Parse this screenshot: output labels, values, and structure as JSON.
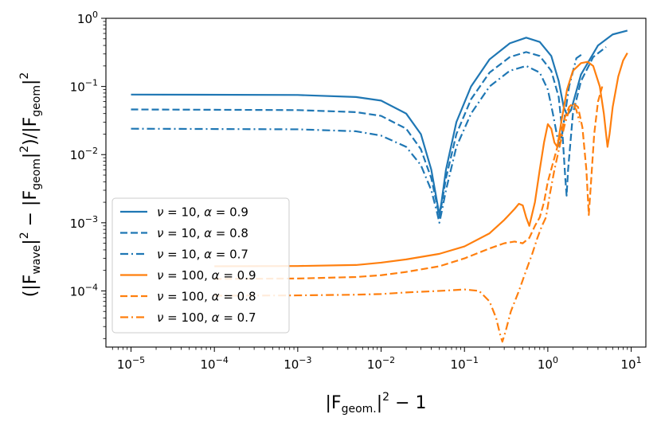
{
  "chart_data": {
    "type": "line",
    "title": "",
    "xscale": "log",
    "yscale": "log",
    "xlim": [
      5e-06,
      15
    ],
    "ylim": [
      1.5e-05,
      1.0
    ],
    "xlabel": "|F_geom.|^2 - 1",
    "ylabel": "(|F_wave|^2 - |F_geom|^2)/|F_geom|^2",
    "xlabel_parts": {
      "pre": "|F",
      "sub": "geom.",
      "post": "|",
      "sup": "2",
      "tail": " − 1"
    },
    "ylabel_parts": {
      "a": "(|F",
      "sub1": "wave",
      "b": "|",
      "sup1": "2",
      "c": " − |F",
      "sub2": "geom",
      "d": "|",
      "sup2": "2",
      "e": ")/|F",
      "sub3": "geom",
      "f": "|",
      "sup3": "2"
    },
    "x_ticks": [
      {
        "value": 1e-05,
        "base": "10",
        "exp": "−5"
      },
      {
        "value": 0.0001,
        "base": "10",
        "exp": "−4"
      },
      {
        "value": 0.001,
        "base": "10",
        "exp": "−3"
      },
      {
        "value": 0.01,
        "base": "10",
        "exp": "−2"
      },
      {
        "value": 0.1,
        "base": "10",
        "exp": "−1"
      },
      {
        "value": 1,
        "base": "10",
        "exp": "0"
      },
      {
        "value": 10,
        "base": "10",
        "exp": "1"
      }
    ],
    "y_ticks": [
      {
        "value": 0.0001,
        "base": "10",
        "exp": "−4"
      },
      {
        "value": 0.001,
        "base": "10",
        "exp": "−3"
      },
      {
        "value": 0.01,
        "base": "10",
        "exp": "−2"
      },
      {
        "value": 0.1,
        "base": "10",
        "exp": "−1"
      },
      {
        "value": 1,
        "base": "10",
        "exp": "0"
      }
    ],
    "legend_position": "lower-left",
    "series": [
      {
        "name": "ν = 10, α = 0.9",
        "nu": "10",
        "alpha": "0.9",
        "color": "#1f77b4",
        "dash": "solid",
        "points": [
          [
            1e-05,
            0.076
          ],
          [
            0.001,
            0.075
          ],
          [
            0.005,
            0.07
          ],
          [
            0.01,
            0.062
          ],
          [
            0.02,
            0.04
          ],
          [
            0.03,
            0.02
          ],
          [
            0.04,
            0.006
          ],
          [
            0.047,
            0.002
          ],
          [
            0.05,
            0.0013
          ],
          [
            0.053,
            0.002
          ],
          [
            0.06,
            0.006
          ],
          [
            0.08,
            0.03
          ],
          [
            0.12,
            0.1
          ],
          [
            0.2,
            0.25
          ],
          [
            0.35,
            0.43
          ],
          [
            0.55,
            0.52
          ],
          [
            0.8,
            0.45
          ],
          [
            1.1,
            0.28
          ],
          [
            1.35,
            0.12
          ],
          [
            1.55,
            0.05
          ],
          [
            1.7,
            0.038
          ],
          [
            1.9,
            0.045
          ],
          [
            2.5,
            0.15
          ],
          [
            4,
            0.4
          ],
          [
            6,
            0.58
          ],
          [
            9,
            0.66
          ]
        ]
      },
      {
        "name": "ν = 10, α = 0.8",
        "nu": "10",
        "alpha": "0.8",
        "color": "#1f77b4",
        "dash": "dashed",
        "points": [
          [
            1e-05,
            0.046
          ],
          [
            0.001,
            0.045
          ],
          [
            0.005,
            0.042
          ],
          [
            0.01,
            0.037
          ],
          [
            0.02,
            0.024
          ],
          [
            0.03,
            0.012
          ],
          [
            0.04,
            0.0045
          ],
          [
            0.047,
            0.0018
          ],
          [
            0.05,
            0.0012
          ],
          [
            0.053,
            0.0018
          ],
          [
            0.06,
            0.0045
          ],
          [
            0.08,
            0.02
          ],
          [
            0.12,
            0.065
          ],
          [
            0.2,
            0.16
          ],
          [
            0.35,
            0.27
          ],
          [
            0.55,
            0.32
          ],
          [
            0.8,
            0.28
          ],
          [
            1.1,
            0.17
          ],
          [
            1.35,
            0.07
          ],
          [
            1.5,
            0.02
          ],
          [
            1.62,
            0.0045
          ],
          [
            1.68,
            0.0025
          ],
          [
            1.75,
            0.006
          ],
          [
            2.0,
            0.04
          ],
          [
            2.5,
            0.12
          ],
          [
            3.5,
            0.27
          ],
          [
            5,
            0.38
          ]
        ]
      },
      {
        "name": "ν = 10, α = 0.7",
        "nu": "10",
        "alpha": "0.7",
        "color": "#1f77b4",
        "dash": "dashdot",
        "points": [
          [
            1e-05,
            0.024
          ],
          [
            0.001,
            0.0235
          ],
          [
            0.005,
            0.022
          ],
          [
            0.01,
            0.019
          ],
          [
            0.02,
            0.013
          ],
          [
            0.03,
            0.007
          ],
          [
            0.04,
            0.003
          ],
          [
            0.047,
            0.0014
          ],
          [
            0.05,
            0.001
          ],
          [
            0.053,
            0.0014
          ],
          [
            0.06,
            0.003
          ],
          [
            0.08,
            0.013
          ],
          [
            0.12,
            0.04
          ],
          [
            0.2,
            0.1
          ],
          [
            0.35,
            0.17
          ],
          [
            0.55,
            0.2
          ],
          [
            0.8,
            0.16
          ],
          [
            1.0,
            0.09
          ],
          [
            1.15,
            0.04
          ],
          [
            1.28,
            0.02
          ],
          [
            1.38,
            0.013
          ],
          [
            1.5,
            0.022
          ],
          [
            1.8,
            0.1
          ],
          [
            2.2,
            0.26
          ],
          [
            2.6,
            0.3
          ]
        ]
      },
      {
        "name": "ν = 100, α = 0.9",
        "nu": "100",
        "alpha": "0.9",
        "color": "#ff7f0e",
        "dash": "solid",
        "points": [
          [
            0.0001,
            0.00023
          ],
          [
            0.001,
            0.000232
          ],
          [
            0.005,
            0.00024
          ],
          [
            0.01,
            0.00026
          ],
          [
            0.02,
            0.00029
          ],
          [
            0.05,
            0.00035
          ],
          [
            0.1,
            0.00045
          ],
          [
            0.2,
            0.0007
          ],
          [
            0.3,
            0.0011
          ],
          [
            0.4,
            0.0016
          ],
          [
            0.45,
            0.0019
          ],
          [
            0.5,
            0.0018
          ],
          [
            0.55,
            0.0012
          ],
          [
            0.6,
            0.0009
          ],
          [
            0.7,
            0.002
          ],
          [
            0.8,
            0.006
          ],
          [
            0.9,
            0.015
          ],
          [
            1.0,
            0.028
          ],
          [
            1.1,
            0.024
          ],
          [
            1.2,
            0.015
          ],
          [
            1.3,
            0.013
          ],
          [
            1.45,
            0.03
          ],
          [
            1.7,
            0.09
          ],
          [
            2.0,
            0.17
          ],
          [
            2.5,
            0.22
          ],
          [
            3.0,
            0.23
          ],
          [
            3.5,
            0.2
          ],
          [
            4.2,
            0.1
          ],
          [
            4.7,
            0.04
          ],
          [
            5.0,
            0.02
          ],
          [
            5.2,
            0.013
          ],
          [
            5.5,
            0.02
          ],
          [
            6.0,
            0.05
          ],
          [
            7.0,
            0.14
          ],
          [
            8.0,
            0.24
          ],
          [
            9.0,
            0.31
          ]
        ]
      },
      {
        "name": "ν = 100, α = 0.8",
        "nu": "100",
        "alpha": "0.8",
        "color": "#ff7f0e",
        "dash": "dashed",
        "points": [
          [
            0.0001,
            0.00015
          ],
          [
            0.001,
            0.000152
          ],
          [
            0.005,
            0.00016
          ],
          [
            0.01,
            0.00017
          ],
          [
            0.02,
            0.00019
          ],
          [
            0.05,
            0.00023
          ],
          [
            0.1,
            0.0003
          ],
          [
            0.2,
            0.00042
          ],
          [
            0.3,
            0.0005
          ],
          [
            0.4,
            0.00053
          ],
          [
            0.5,
            0.0005
          ],
          [
            0.6,
            0.0006
          ],
          [
            0.7,
            0.0009
          ],
          [
            0.8,
            0.0012
          ],
          [
            0.9,
            0.002
          ],
          [
            1.0,
            0.004
          ],
          [
            1.2,
            0.009
          ],
          [
            1.4,
            0.018
          ],
          [
            1.6,
            0.035
          ],
          [
            1.8,
            0.05
          ],
          [
            2.0,
            0.057
          ],
          [
            2.3,
            0.05
          ],
          [
            2.6,
            0.025
          ],
          [
            2.9,
            0.006
          ],
          [
            3.1,
            0.0013
          ],
          [
            3.3,
            0.004
          ],
          [
            3.6,
            0.02
          ],
          [
            4.0,
            0.06
          ],
          [
            4.5,
            0.1
          ]
        ]
      },
      {
        "name": "ν = 100, α = 0.7",
        "nu": "100",
        "alpha": "0.7",
        "color": "#ff7f0e",
        "dash": "dashdot",
        "points": [
          [
            0.0001,
            8.5e-05
          ],
          [
            0.001,
            8.6e-05
          ],
          [
            0.005,
            8.8e-05
          ],
          [
            0.01,
            9e-05
          ],
          [
            0.02,
            9.5e-05
          ],
          [
            0.05,
            0.0001
          ],
          [
            0.1,
            0.000105
          ],
          [
            0.15,
            0.0001
          ],
          [
            0.2,
            7e-05
          ],
          [
            0.24,
            4e-05
          ],
          [
            0.27,
            2.2e-05
          ],
          [
            0.285,
            1.8e-05
          ],
          [
            0.31,
            2.5e-05
          ],
          [
            0.36,
            5e-05
          ],
          [
            0.45,
            0.0001
          ],
          [
            0.55,
            0.0002
          ],
          [
            0.65,
            0.00035
          ],
          [
            0.75,
            0.0006
          ],
          [
            0.85,
            0.0009
          ],
          [
            0.95,
            0.0012
          ],
          [
            1.05,
            0.0025
          ],
          [
            1.2,
            0.006
          ],
          [
            1.4,
            0.014
          ],
          [
            1.6,
            0.028
          ],
          [
            1.8,
            0.045
          ],
          [
            2.0,
            0.055
          ],
          [
            2.2,
            0.045
          ],
          [
            2.4,
            0.03
          ]
        ]
      }
    ]
  }
}
